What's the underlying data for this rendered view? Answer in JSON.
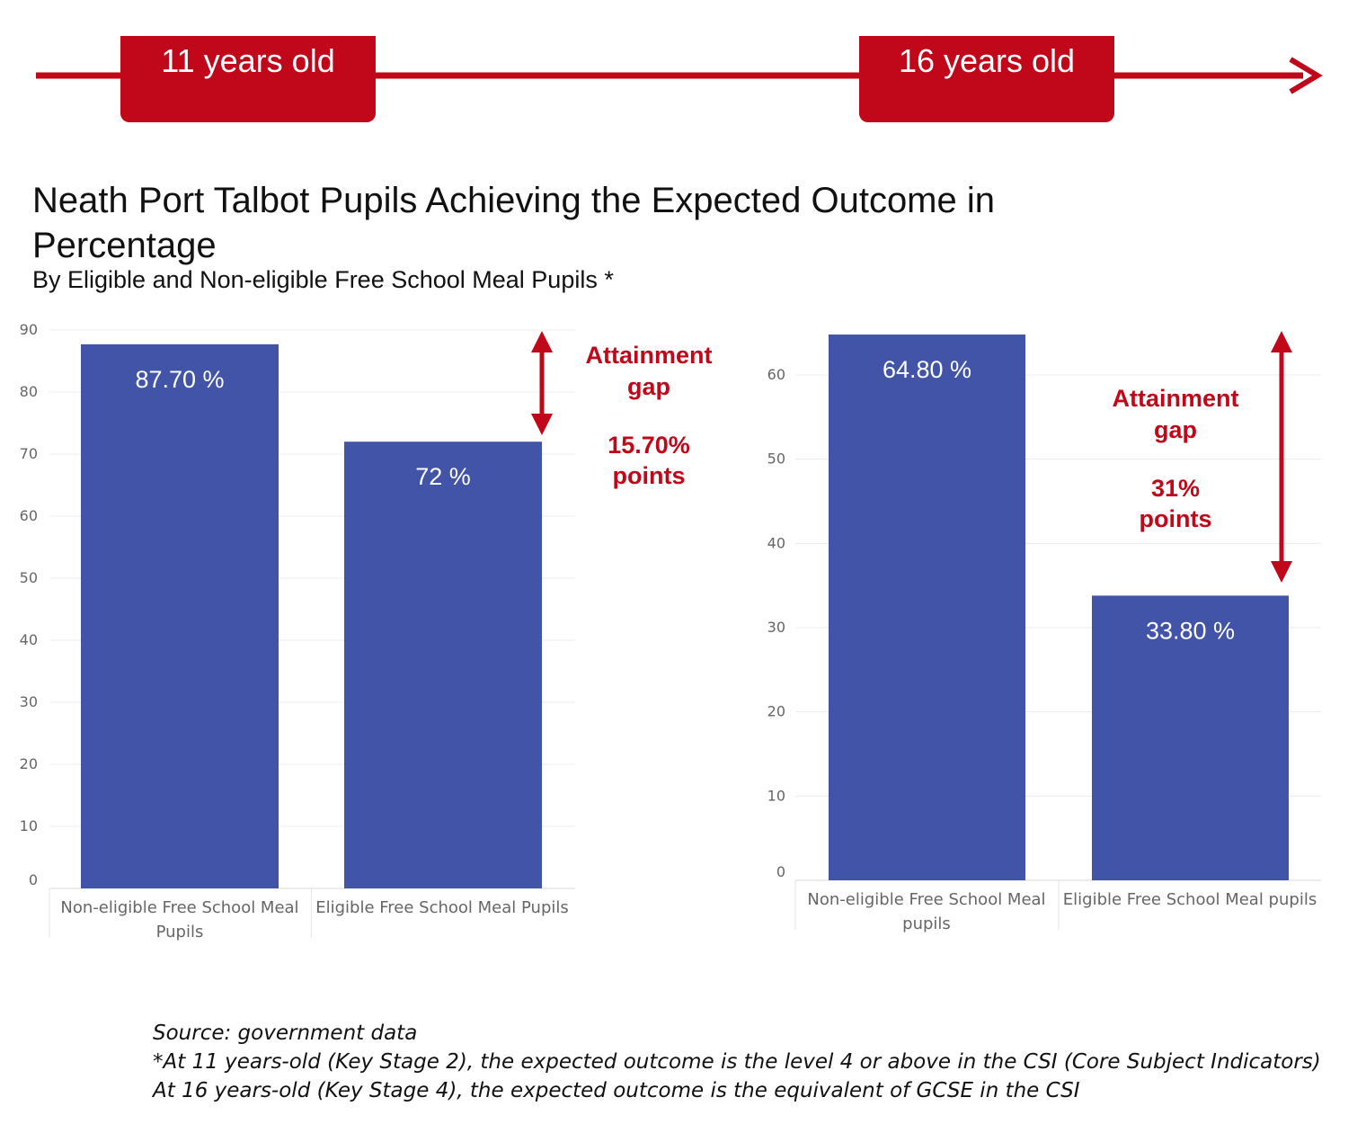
{
  "timeline": {
    "age_left": "11 years old",
    "age_right": "16 years old",
    "color": "#c0081a"
  },
  "title": "Neath Port Talbot Pupils Achieving the Expected Outcome in Percentage",
  "subtitle": "By Eligible and Non-eligible Free School Meal Pupils *",
  "chart_data": [
    {
      "type": "bar",
      "categories": [
        "Non-eligible Free School Meal Pupils",
        "Eligible Free School Meal Pupils"
      ],
      "values": [
        87.7,
        72
      ],
      "data_labels": [
        "87.70 %",
        "72 %"
      ],
      "ylim": [
        0,
        90
      ],
      "yticks": [
        0,
        10,
        20,
        30,
        40,
        50,
        60,
        70,
        80,
        90
      ],
      "bar_color": "#4154a8",
      "grid": true,
      "annotation": {
        "line1": "Attainment",
        "line2": "gap",
        "line3": "15.70%",
        "line4": "points",
        "color": "#c0081a"
      }
    },
    {
      "type": "bar",
      "categories": [
        "Non-eligible Free School Meal pupils",
        "Eligible Free School Meal pupils"
      ],
      "values": [
        64.8,
        33.8
      ],
      "data_labels": [
        "64.80 %",
        "33.80 %"
      ],
      "ylim": [
        0,
        60
      ],
      "yticks": [
        0,
        10,
        20,
        30,
        40,
        50,
        60
      ],
      "bar_color": "#4154a8",
      "grid": true,
      "annotation": {
        "line1": "Attainment",
        "line2": "gap",
        "line3": "31%",
        "line4": "points",
        "color": "#c0081a"
      }
    }
  ],
  "footnote": {
    "line1": "Source: government data",
    "line2": "*At 11 years-old (Key Stage 2), the expected outcome is the level 4 or above in the CSI (Core Subject Indicators)",
    "line3": "At 16 years-old (Key Stage 4), the expected outcome is the equivalent of GCSE in the CSI"
  }
}
